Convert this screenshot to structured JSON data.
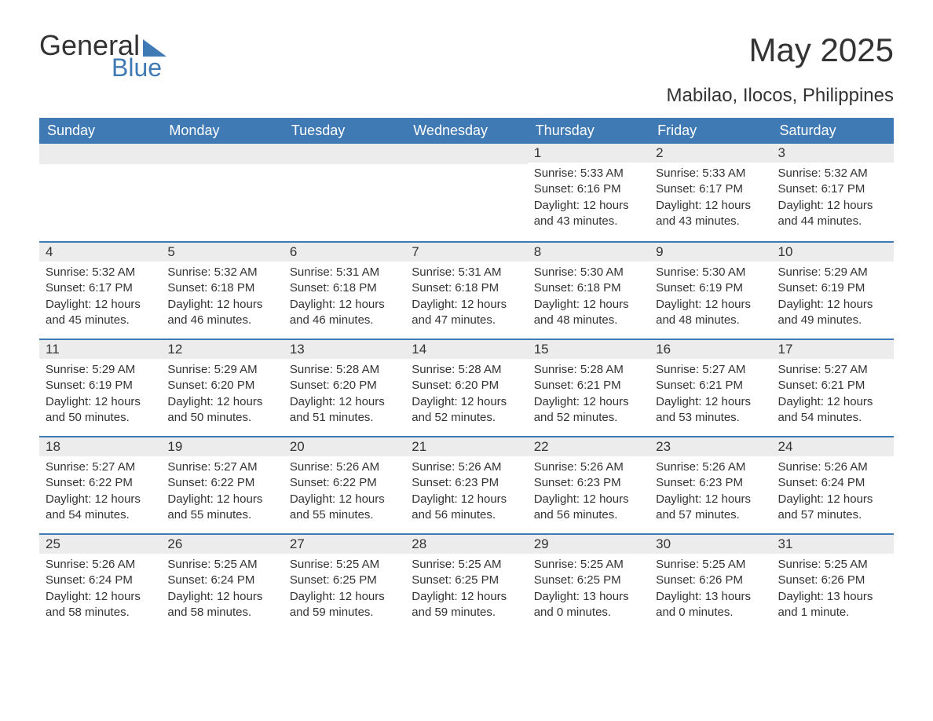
{
  "logo": {
    "word1": "General",
    "word2": "Blue"
  },
  "title": "May 2025",
  "location": "Mabilao, Ilocos, Philippines",
  "colors": {
    "header_bg": "#3f7ab5",
    "day_number_bg": "#ececec",
    "text": "#333333",
    "header_text": "#ffffff",
    "background": "#ffffff"
  },
  "fonts": {
    "title_size_pt": 32,
    "location_size_pt": 18,
    "header_size_pt": 14,
    "cell_size_pt": 11
  },
  "day_headers": [
    "Sunday",
    "Monday",
    "Tuesday",
    "Wednesday",
    "Thursday",
    "Friday",
    "Saturday"
  ],
  "weeks": [
    [
      null,
      null,
      null,
      null,
      {
        "num": "1",
        "sunrise": "Sunrise: 5:33 AM",
        "sunset": "Sunset: 6:16 PM",
        "daylight": "Daylight: 12 hours and 43 minutes."
      },
      {
        "num": "2",
        "sunrise": "Sunrise: 5:33 AM",
        "sunset": "Sunset: 6:17 PM",
        "daylight": "Daylight: 12 hours and 43 minutes."
      },
      {
        "num": "3",
        "sunrise": "Sunrise: 5:32 AM",
        "sunset": "Sunset: 6:17 PM",
        "daylight": "Daylight: 12 hours and 44 minutes."
      }
    ],
    [
      {
        "num": "4",
        "sunrise": "Sunrise: 5:32 AM",
        "sunset": "Sunset: 6:17 PM",
        "daylight": "Daylight: 12 hours and 45 minutes."
      },
      {
        "num": "5",
        "sunrise": "Sunrise: 5:32 AM",
        "sunset": "Sunset: 6:18 PM",
        "daylight": "Daylight: 12 hours and 46 minutes."
      },
      {
        "num": "6",
        "sunrise": "Sunrise: 5:31 AM",
        "sunset": "Sunset: 6:18 PM",
        "daylight": "Daylight: 12 hours and 46 minutes."
      },
      {
        "num": "7",
        "sunrise": "Sunrise: 5:31 AM",
        "sunset": "Sunset: 6:18 PM",
        "daylight": "Daylight: 12 hours and 47 minutes."
      },
      {
        "num": "8",
        "sunrise": "Sunrise: 5:30 AM",
        "sunset": "Sunset: 6:18 PM",
        "daylight": "Daylight: 12 hours and 48 minutes."
      },
      {
        "num": "9",
        "sunrise": "Sunrise: 5:30 AM",
        "sunset": "Sunset: 6:19 PM",
        "daylight": "Daylight: 12 hours and 48 minutes."
      },
      {
        "num": "10",
        "sunrise": "Sunrise: 5:29 AM",
        "sunset": "Sunset: 6:19 PM",
        "daylight": "Daylight: 12 hours and 49 minutes."
      }
    ],
    [
      {
        "num": "11",
        "sunrise": "Sunrise: 5:29 AM",
        "sunset": "Sunset: 6:19 PM",
        "daylight": "Daylight: 12 hours and 50 minutes."
      },
      {
        "num": "12",
        "sunrise": "Sunrise: 5:29 AM",
        "sunset": "Sunset: 6:20 PM",
        "daylight": "Daylight: 12 hours and 50 minutes."
      },
      {
        "num": "13",
        "sunrise": "Sunrise: 5:28 AM",
        "sunset": "Sunset: 6:20 PM",
        "daylight": "Daylight: 12 hours and 51 minutes."
      },
      {
        "num": "14",
        "sunrise": "Sunrise: 5:28 AM",
        "sunset": "Sunset: 6:20 PM",
        "daylight": "Daylight: 12 hours and 52 minutes."
      },
      {
        "num": "15",
        "sunrise": "Sunrise: 5:28 AM",
        "sunset": "Sunset: 6:21 PM",
        "daylight": "Daylight: 12 hours and 52 minutes."
      },
      {
        "num": "16",
        "sunrise": "Sunrise: 5:27 AM",
        "sunset": "Sunset: 6:21 PM",
        "daylight": "Daylight: 12 hours and 53 minutes."
      },
      {
        "num": "17",
        "sunrise": "Sunrise: 5:27 AM",
        "sunset": "Sunset: 6:21 PM",
        "daylight": "Daylight: 12 hours and 54 minutes."
      }
    ],
    [
      {
        "num": "18",
        "sunrise": "Sunrise: 5:27 AM",
        "sunset": "Sunset: 6:22 PM",
        "daylight": "Daylight: 12 hours and 54 minutes."
      },
      {
        "num": "19",
        "sunrise": "Sunrise: 5:27 AM",
        "sunset": "Sunset: 6:22 PM",
        "daylight": "Daylight: 12 hours and 55 minutes."
      },
      {
        "num": "20",
        "sunrise": "Sunrise: 5:26 AM",
        "sunset": "Sunset: 6:22 PM",
        "daylight": "Daylight: 12 hours and 55 minutes."
      },
      {
        "num": "21",
        "sunrise": "Sunrise: 5:26 AM",
        "sunset": "Sunset: 6:23 PM",
        "daylight": "Daylight: 12 hours and 56 minutes."
      },
      {
        "num": "22",
        "sunrise": "Sunrise: 5:26 AM",
        "sunset": "Sunset: 6:23 PM",
        "daylight": "Daylight: 12 hours and 56 minutes."
      },
      {
        "num": "23",
        "sunrise": "Sunrise: 5:26 AM",
        "sunset": "Sunset: 6:23 PM",
        "daylight": "Daylight: 12 hours and 57 minutes."
      },
      {
        "num": "24",
        "sunrise": "Sunrise: 5:26 AM",
        "sunset": "Sunset: 6:24 PM",
        "daylight": "Daylight: 12 hours and 57 minutes."
      }
    ],
    [
      {
        "num": "25",
        "sunrise": "Sunrise: 5:26 AM",
        "sunset": "Sunset: 6:24 PM",
        "daylight": "Daylight: 12 hours and 58 minutes."
      },
      {
        "num": "26",
        "sunrise": "Sunrise: 5:25 AM",
        "sunset": "Sunset: 6:24 PM",
        "daylight": "Daylight: 12 hours and 58 minutes."
      },
      {
        "num": "27",
        "sunrise": "Sunrise: 5:25 AM",
        "sunset": "Sunset: 6:25 PM",
        "daylight": "Daylight: 12 hours and 59 minutes."
      },
      {
        "num": "28",
        "sunrise": "Sunrise: 5:25 AM",
        "sunset": "Sunset: 6:25 PM",
        "daylight": "Daylight: 12 hours and 59 minutes."
      },
      {
        "num": "29",
        "sunrise": "Sunrise: 5:25 AM",
        "sunset": "Sunset: 6:25 PM",
        "daylight": "Daylight: 13 hours and 0 minutes."
      },
      {
        "num": "30",
        "sunrise": "Sunrise: 5:25 AM",
        "sunset": "Sunset: 6:26 PM",
        "daylight": "Daylight: 13 hours and 0 minutes."
      },
      {
        "num": "31",
        "sunrise": "Sunrise: 5:25 AM",
        "sunset": "Sunset: 6:26 PM",
        "daylight": "Daylight: 13 hours and 1 minute."
      }
    ]
  ]
}
